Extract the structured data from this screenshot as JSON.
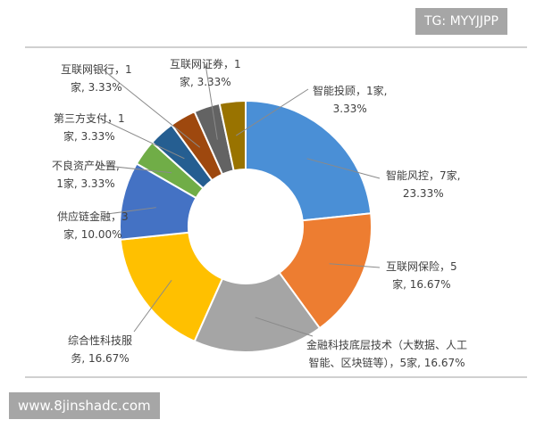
{
  "watermark_top": "TG: MYYJJPP",
  "watermark_bottom": "www.8jinshadc.com",
  "chart_data": {
    "type": "pie",
    "donut": true,
    "title": "",
    "legend": "none",
    "slices": [
      {
        "name": "智能风控",
        "count": 7,
        "percent": 23.33,
        "color": "#4a8fd6",
        "line1": "智能风控，7家,",
        "line2": "23.33%"
      },
      {
        "name": "互联网保险",
        "count": 5,
        "percent": 16.67,
        "color": "#ed7d31",
        "line1": "互联网保险，5",
        "line2": "家, 16.67%"
      },
      {
        "name": "金融科技底层技术（大数据、人工智能、区块链等）",
        "count": 5,
        "percent": 16.67,
        "color": "#a5a5a5",
        "line1": "金融科技底层技术（大数据、人工",
        "line2": "智能、区块链等），5家, 16.67%"
      },
      {
        "name": "综合性科技服务",
        "count": 5,
        "percent": 16.67,
        "color": "#ffc000",
        "line1": "综合性科技服",
        "line2": "务, 16.67%"
      },
      {
        "name": "供应链金融",
        "count": 3,
        "percent": 10.0,
        "color": "#4472c4",
        "line1": "供应链金融，3",
        "line2": "家, 10.00%"
      },
      {
        "name": "不良资产处置",
        "count": 1,
        "percent": 3.33,
        "color": "#70ad47",
        "line1": "不良资产处置,",
        "line2": "1家, 3.33%"
      },
      {
        "name": "第三方支付",
        "count": 1,
        "percent": 3.33,
        "color": "#255e91",
        "line1": "第三方支付，1",
        "line2": "家, 3.33%"
      },
      {
        "name": "互联网银行",
        "count": 1,
        "percent": 3.33,
        "color": "#9e480e",
        "line1": "互联网银行，1",
        "line2": "家, 3.33%"
      },
      {
        "name": "互联网证券",
        "count": 1,
        "percent": 3.33,
        "color": "#636363",
        "line1": "互联网证券，1",
        "line2": "家, 3.33%"
      },
      {
        "name": "智能投顾",
        "count": 1,
        "percent": 3.33,
        "color": "#997300",
        "line1": "智能投顾，1家,",
        "line2": "3.33%"
      }
    ]
  }
}
